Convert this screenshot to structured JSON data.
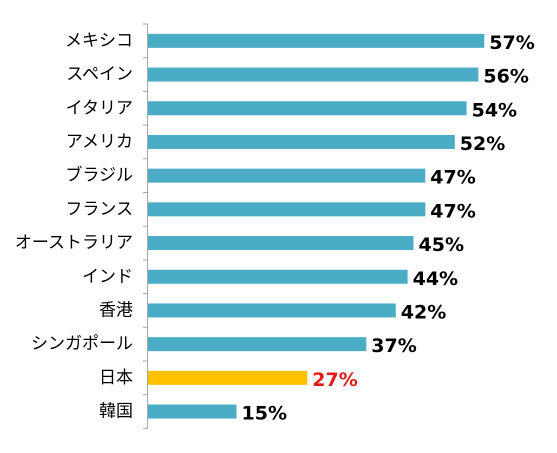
{
  "chart_data": {
    "type": "bar",
    "orientation": "horizontal",
    "categories": [
      "メキシコ",
      "スペイン",
      "イタリア",
      "アメリカ",
      "ブラジル",
      "フランス",
      "オーストラリア",
      "インド",
      "香港",
      "シンガポール",
      "日本",
      "韓国"
    ],
    "values": [
      57,
      56,
      54,
      52,
      47,
      47,
      45,
      44,
      42,
      37,
      27,
      15
    ],
    "value_labels": [
      "57%",
      "56%",
      "54%",
      "52%",
      "47%",
      "47%",
      "45%",
      "44%",
      "42%",
      "37%",
      "27%",
      "15%"
    ],
    "highlight_category": "日本",
    "xlim": [
      0,
      60
    ],
    "grid": false,
    "legend": "none",
    "colors": {
      "bar": "#4BACC6",
      "highlight_bar": "#FFC000",
      "label": "#000000",
      "highlight_label": "#E41B1B",
      "axis": "#A6A6A6"
    }
  }
}
